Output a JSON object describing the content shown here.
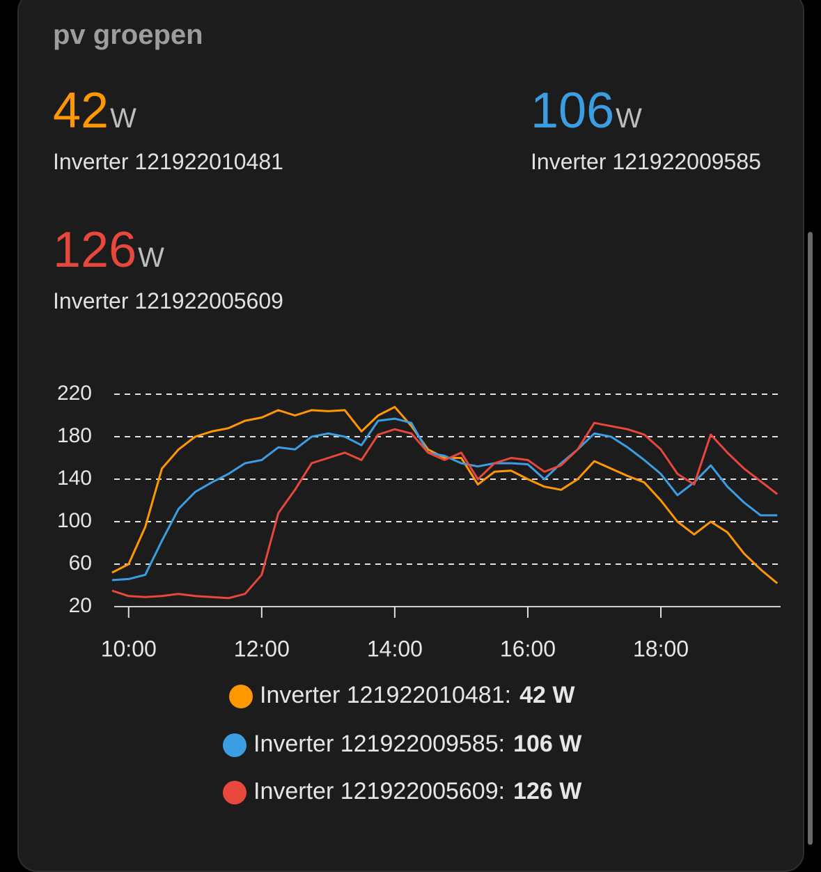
{
  "header": {
    "title": "pv groepen"
  },
  "entities": [
    {
      "state": 42,
      "unit": "W",
      "name": "Inverter 121922010481"
    },
    {
      "state": 106,
      "unit": "W",
      "name": "Inverter 121922009585"
    },
    {
      "state": 126,
      "unit": "W",
      "name": "Inverter 121922005609"
    }
  ],
  "chart_data": {
    "type": "line",
    "grid": true,
    "x": [
      9.75,
      10,
      10.25,
      10.5,
      10.75,
      11,
      11.25,
      11.5,
      11.75,
      12,
      12.25,
      12.5,
      12.75,
      13,
      13.25,
      13.5,
      13.75,
      14,
      14.25,
      14.5,
      14.75,
      15,
      15.25,
      15.5,
      15.75,
      16,
      16.25,
      16.5,
      16.75,
      17,
      17.25,
      17.5,
      17.75,
      18,
      18.25,
      18.5,
      18.75,
      19,
      19.25,
      19.5,
      19.75
    ],
    "xlim": [
      9.72,
      19.8
    ],
    "xticks": [
      {
        "value": 10,
        "label": "10:00"
      },
      {
        "value": 12,
        "label": "12:00"
      },
      {
        "value": 14,
        "label": "14:00"
      },
      {
        "value": 16,
        "label": "16:00"
      },
      {
        "value": 18,
        "label": "18:00"
      }
    ],
    "ylim": [
      20,
      220
    ],
    "yticks": [
      20,
      60,
      100,
      140,
      180,
      220
    ],
    "legend_separator": ":",
    "series": [
      {
        "name": "Inverter 121922010481",
        "color": "#ff9800",
        "legend_state": "42 W",
        "values": [
          52,
          60,
          95,
          150,
          168,
          180,
          185,
          188,
          195,
          198,
          205,
          200,
          205,
          204,
          205,
          185,
          200,
          208,
          190,
          168,
          160,
          160,
          135,
          147,
          148,
          140,
          133,
          130,
          140,
          157,
          150,
          143,
          137,
          120,
          100,
          88,
          100,
          90,
          70,
          55,
          42
        ]
      },
      {
        "name": "Inverter 121922009585",
        "color": "#3b9ee3",
        "legend_state": "106 W",
        "values": [
          45,
          46,
          50,
          82,
          112,
          128,
          137,
          145,
          155,
          158,
          170,
          168,
          180,
          183,
          180,
          172,
          195,
          197,
          193,
          165,
          162,
          155,
          152,
          155,
          155,
          154,
          140,
          155,
          168,
          183,
          180,
          170,
          158,
          145,
          125,
          137,
          153,
          133,
          118,
          106,
          106
        ]
      },
      {
        "name": "Inverter 121922005609",
        "color": "#e8473b",
        "legend_state": "126 W",
        "values": [
          35,
          30,
          29,
          30,
          32,
          30,
          29,
          28,
          32,
          50,
          108,
          130,
          155,
          160,
          165,
          158,
          182,
          187,
          183,
          165,
          158,
          165,
          140,
          155,
          160,
          158,
          147,
          153,
          168,
          193,
          190,
          187,
          182,
          168,
          145,
          135,
          182,
          165,
          150,
          138,
          126
        ]
      }
    ]
  }
}
